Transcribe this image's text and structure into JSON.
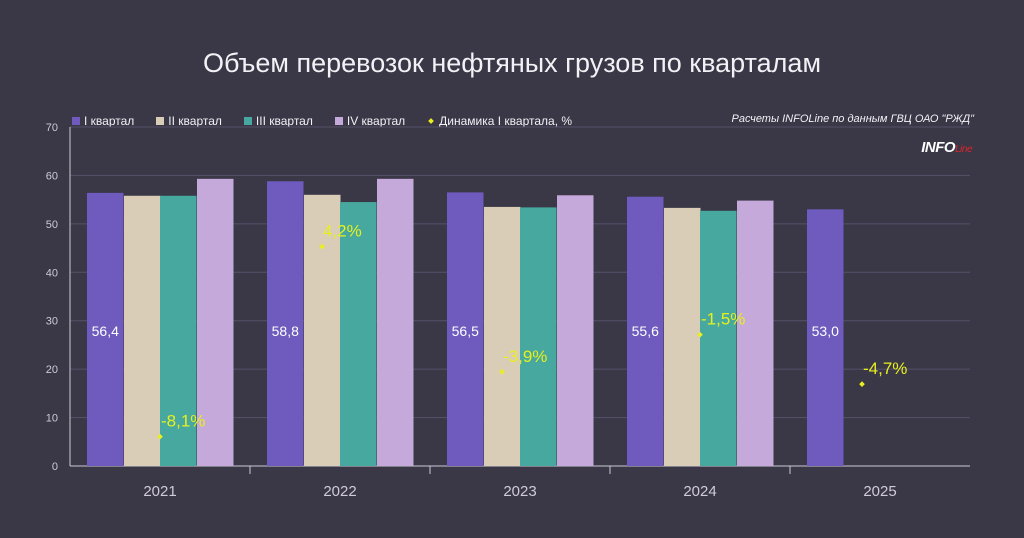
{
  "title": "Объем перевозок нефтяных грузов по кварталам",
  "source_note": "Расчеты INFOLine по данным ГВЦ ОАО \"РЖД\"",
  "logo": {
    "main": "INFO",
    "sub": "Line"
  },
  "colors": {
    "q1": "#6e5bbd",
    "q2": "#d9cdb8",
    "q3": "#46a89e",
    "q4": "#c5a9da",
    "dyn": "#e8ef1e",
    "grid": "#55526a",
    "axis": "#cfcbd8"
  },
  "chart_data": {
    "type": "bar",
    "title": "Объем перевозок нефтяных грузов по кварталам",
    "categories": [
      "2021",
      "2022",
      "2023",
      "2024",
      "2025"
    ],
    "ylim": [
      0,
      70
    ],
    "yticks": [
      0,
      10,
      20,
      30,
      40,
      50,
      60,
      70
    ],
    "grid": true,
    "legend_position": "top-left",
    "series": [
      {
        "name": "I квартал",
        "key": "q1",
        "values": [
          56.4,
          58.8,
          56.5,
          55.6,
          53.0
        ]
      },
      {
        "name": "II квартал",
        "key": "q2",
        "values": [
          55.8,
          56.0,
          53.5,
          53.3,
          null
        ]
      },
      {
        "name": "III квартал",
        "key": "q3",
        "values": [
          55.8,
          54.5,
          53.4,
          52.7,
          null
        ]
      },
      {
        "name": "IV квартал",
        "key": "q4",
        "values": [
          59.3,
          59.3,
          55.9,
          54.8,
          null
        ]
      }
    ],
    "value_labels": [
      "56,4",
      "58,8",
      "56,5",
      "55,6",
      "53,0"
    ],
    "dynamics": {
      "name": "Динамика I квартала, %",
      "values": [
        -8.1,
        4.2,
        -3.9,
        -1.5,
        -4.7
      ],
      "labels": [
        "-8,1%",
        "4,2%",
        "-3,9%",
        "-1,5%",
        "-4,7%"
      ]
    }
  }
}
